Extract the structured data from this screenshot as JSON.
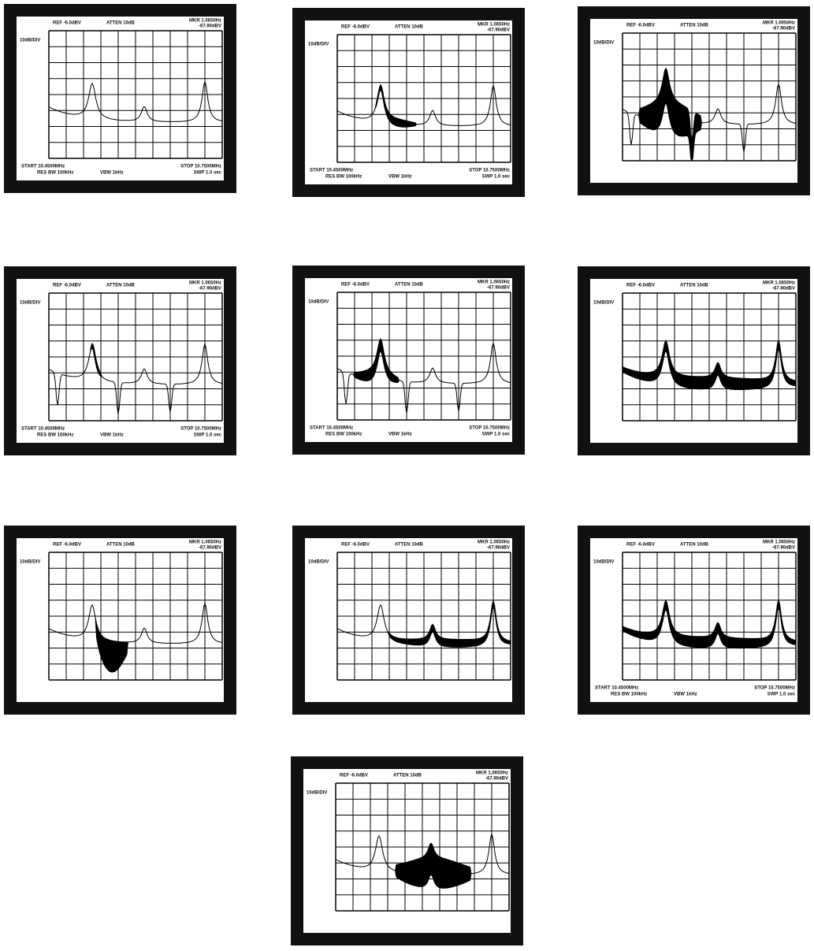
{
  "panels": [
    {
      "ref": "REF -6.0dBV",
      "atten": "ATTEN 10dB",
      "marker": "MKR 1.0650Hz",
      "marker_level": "-67.90dBV",
      "scale": "10dB/DIV",
      "start": "START 10.4500MHz",
      "stop": "STOP 10.7500MHz",
      "rbw": "RES BW 100kHz",
      "vbw": "VBW 1kHz",
      "sweep": "SWP 1.0 sec"
    },
    {
      "ref": "REF -6.0dBV",
      "atten": "ATTEN 10dB",
      "marker": "MKR 1.0650Hz",
      "marker_level": "-67.90dBV",
      "scale": "10dB/DIV",
      "start": "START 10.4500MHz",
      "stop": "STOP 10.7500MHz",
      "rbw": "RES BW 100kHz",
      "vbw": "VBW 1kHz",
      "sweep": "SWP 1.0 sec"
    },
    {
      "ref": "REF -6.0dBV",
      "atten": "ATTEN 10dB",
      "marker": "MKR 1.0650Hz",
      "marker_level": "-67.90dBV",
      "scale": "10dB/DIV"
    },
    {
      "ref": "REF -6.0dBV",
      "atten": "ATTEN 10dB",
      "marker": "MKR 1.0650Hz",
      "marker_level": "-67.90dBV",
      "scale": "10dB/DIV",
      "start": "START 10.4500MHz",
      "stop": "STOP 10.7500MHz",
      "rbw": "RES BW 100kHz",
      "vbw": "VBW 1kHz",
      "sweep": "SWP 1.0 sec"
    },
    {
      "ref": "REF -6.0dBV",
      "atten": "ATTEN 10dB",
      "marker": "MKR 1.0650Hz",
      "marker_level": "-67.90dBV",
      "scale": "10dB/DIV",
      "start": "START 10.4500MHz",
      "stop": "STOP 10.7500MHz",
      "rbw": "RES BW 100kHz",
      "vbw": "VBW 1kHz",
      "sweep": "SWP 1.0 sec"
    },
    {
      "ref": "REF -6.0dBV",
      "atten": "ATTEN 10dB",
      "marker": "MKR 1.0650Hz",
      "marker_level": "-67.90dBV",
      "scale": "10dB/DIV"
    },
    {
      "ref": "REF -6.0dBV",
      "atten": "ATTEN 10dB",
      "marker": "MKR 1.0650Hz",
      "marker_level": "-67.90dBV",
      "scale": "10dB/DIV"
    },
    {
      "ref": "REF -6.0dBV",
      "atten": "ATTEN 10dB",
      "marker": "MKR 1.0650Hz",
      "marker_level": "-67.90dBV",
      "scale": "10dB/DIV"
    },
    {
      "ref": "REF -6.0dBV",
      "atten": "ATTEN 10dB",
      "marker": "MKR 1.0650Hz",
      "marker_level": "-67.90dBV",
      "scale": "10dB/DIV",
      "start": "START 10.4500MHz",
      "stop": "STOP 10.7500MHz",
      "rbw": "RES BW 100kHz",
      "vbw": "VBW 1kHz",
      "sweep": "SWP 1.0 sec"
    },
    {
      "ref": "REF -6.0dBV",
      "atten": "ATTEN 10dB",
      "marker": "MKR 1.0650Hz",
      "marker_level": "-67.90dBV",
      "scale": "10dB/DIV"
    }
  ]
}
